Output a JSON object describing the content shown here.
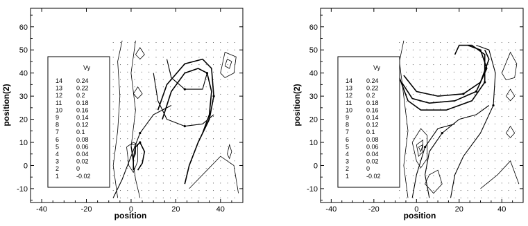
{
  "chart_data": [
    {
      "type": "contour",
      "xlabel": "position",
      "ylabel": "position(2)",
      "xlim": [
        -45,
        50
      ],
      "ylim": [
        -16,
        68
      ],
      "x_ticks": [
        -40,
        -20,
        0,
        20,
        40
      ],
      "y_ticks": [
        -10,
        0,
        10,
        20,
        30,
        40,
        50,
        60
      ],
      "legend": {
        "title": "Vy",
        "placement": "left",
        "entries": [
          {
            "level": "14",
            "value": "0.24"
          },
          {
            "level": "13",
            "value": "0.22"
          },
          {
            "level": "12",
            "value": "0.2"
          },
          {
            "level": "11",
            "value": "0.18"
          },
          {
            "level": "10",
            "value": "0.16"
          },
          {
            "level": "9",
            "value": "0.14"
          },
          {
            "level": "8",
            "value": "0.12"
          },
          {
            "level": "7",
            "value": "0.1"
          },
          {
            "level": "6",
            "value": "0.08"
          },
          {
            "level": "5",
            "value": "0.06"
          },
          {
            "level": "4",
            "value": "0.04"
          },
          {
            "level": "3",
            "value": "0.02"
          },
          {
            "level": "2",
            "value": "0"
          },
          {
            "level": "1",
            "value": "-0.02"
          }
        ]
      },
      "streamlines": [
        [
          [
            1,
            -2
          ],
          [
            1,
            3
          ],
          [
            2,
            8
          ],
          [
            4,
            10
          ],
          [
            6,
            6
          ],
          [
            5,
            1
          ],
          [
            3,
            -2
          ]
        ],
        [
          [
            14,
            20
          ],
          [
            18,
            32
          ],
          [
            24,
            40
          ],
          [
            30,
            42
          ],
          [
            34,
            40
          ],
          [
            36,
            32
          ],
          [
            35,
            22
          ],
          [
            32,
            14
          ]
        ],
        [
          [
            12,
            24
          ],
          [
            16,
            35
          ],
          [
            24,
            44
          ],
          [
            32,
            46
          ],
          [
            36,
            42
          ],
          [
            37,
            30
          ],
          [
            35,
            20
          ],
          [
            30,
            10
          ],
          [
            26,
            0
          ],
          [
            24,
            -8
          ]
        ],
        [
          [
            10,
            40
          ],
          [
            12,
            28
          ],
          [
            16,
            20
          ],
          [
            24,
            17
          ],
          [
            32,
            18
          ],
          [
            37,
            22
          ]
        ],
        [
          [
            16,
            46
          ],
          [
            18,
            38
          ],
          [
            24,
            33
          ],
          [
            32,
            33
          ],
          [
            34,
            40
          ]
        ],
        [
          [
            -8,
            -14
          ],
          [
            -4,
            -6
          ],
          [
            0,
            4
          ],
          [
            4,
            14
          ],
          [
            10,
            22
          ],
          [
            18,
            26
          ]
        ]
      ],
      "contours": [
        [
          [
            -4,
            54
          ],
          [
            -6,
            45
          ],
          [
            -5,
            30
          ],
          [
            -6,
            15
          ],
          [
            -8,
            0
          ],
          [
            -6,
            -14
          ]
        ],
        [
          [
            4,
            -14
          ],
          [
            2,
            -6
          ],
          [
            0,
            8
          ],
          [
            2,
            24
          ],
          [
            0,
            40
          ],
          [
            2,
            54
          ]
        ],
        [
          [
            -2,
            8
          ],
          [
            -1,
            0
          ],
          [
            1,
            -3
          ],
          [
            3,
            2
          ],
          [
            3,
            9
          ],
          [
            1,
            10
          ],
          [
            -2,
            8
          ]
        ],
        [
          [
            0,
            9
          ],
          [
            1,
            3
          ],
          [
            2,
            5
          ],
          [
            2,
            9
          ],
          [
            0,
            9
          ]
        ],
        [
          [
            1,
            31
          ],
          [
            3,
            29
          ],
          [
            5,
            31
          ],
          [
            3,
            34
          ],
          [
            1,
            31
          ]
        ],
        [
          [
            2,
            48
          ],
          [
            4,
            46
          ],
          [
            6,
            48
          ],
          [
            4,
            51
          ],
          [
            2,
            48
          ]
        ],
        [
          [
            40,
            40
          ],
          [
            42,
            38
          ],
          [
            46,
            40
          ],
          [
            47,
            47
          ],
          [
            42,
            49
          ],
          [
            40,
            40
          ]
        ],
        [
          [
            42,
            43
          ],
          [
            44,
            42
          ],
          [
            45,
            45
          ],
          [
            43,
            46
          ],
          [
            42,
            43
          ]
        ],
        [
          [
            43,
            5
          ],
          [
            44,
            3
          ],
          [
            45,
            6
          ],
          [
            44,
            9
          ],
          [
            43,
            5
          ]
        ],
        [
          [
            26,
            -10
          ],
          [
            34,
            -2
          ],
          [
            40,
            4
          ],
          [
            46,
            0
          ],
          [
            48,
            -12
          ]
        ]
      ]
    },
    {
      "type": "contour",
      "xlabel": "position",
      "ylabel": "position(2)",
      "xlim": [
        -45,
        50
      ],
      "ylim": [
        -16,
        68
      ],
      "x_ticks": [
        -40,
        -20,
        0,
        20,
        40
      ],
      "y_ticks": [
        -10,
        0,
        10,
        20,
        30,
        40,
        50,
        60
      ],
      "legend": {
        "title": "Vy",
        "placement": "left",
        "entries": [
          {
            "level": "14",
            "value": "0.24"
          },
          {
            "level": "13",
            "value": "0.22"
          },
          {
            "level": "12",
            "value": "0.2"
          },
          {
            "level": "11",
            "value": "0.18"
          },
          {
            "level": "10",
            "value": "0.16"
          },
          {
            "level": "9",
            "value": "0.14"
          },
          {
            "level": "8",
            "value": "0.12"
          },
          {
            "level": "7",
            "value": "0.1"
          },
          {
            "level": "6",
            "value": "0.08"
          },
          {
            "level": "5",
            "value": "0.06"
          },
          {
            "level": "4",
            "value": "0.04"
          },
          {
            "level": "3",
            "value": "0.02"
          },
          {
            "level": "2",
            "value": "0"
          },
          {
            "level": "1",
            "value": "-0.02"
          }
        ]
      },
      "streamlines": [
        [
          [
            -8,
            38
          ],
          [
            -4,
            28
          ],
          [
            2,
            24
          ],
          [
            14,
            24
          ],
          [
            26,
            28
          ],
          [
            32,
            36
          ],
          [
            32,
            48
          ],
          [
            26,
            52
          ],
          [
            20,
            52
          ],
          [
            18,
            48
          ]
        ],
        [
          [
            -7,
            36
          ],
          [
            -2,
            29
          ],
          [
            6,
            27
          ],
          [
            18,
            28
          ],
          [
            28,
            32
          ],
          [
            33,
            42
          ],
          [
            30,
            50
          ],
          [
            24,
            52
          ]
        ],
        [
          [
            -6,
            39
          ],
          [
            0,
            32
          ],
          [
            10,
            30
          ],
          [
            22,
            31
          ],
          [
            30,
            36
          ],
          [
            34,
            46
          ],
          [
            32,
            50
          ]
        ],
        [
          [
            16,
            -14
          ],
          [
            18,
            -4
          ],
          [
            22,
            4
          ],
          [
            30,
            14
          ],
          [
            36,
            26
          ],
          [
            37,
            40
          ],
          [
            34,
            50
          ],
          [
            28,
            52
          ]
        ],
        [
          [
            6,
            -14
          ],
          [
            4,
            -4
          ],
          [
            6,
            6
          ],
          [
            12,
            14
          ],
          [
            20,
            20
          ],
          [
            28,
            22
          ],
          [
            34,
            26
          ]
        ],
        [
          [
            -2,
            -14
          ],
          [
            0,
            -4
          ],
          [
            4,
            8
          ],
          [
            10,
            16
          ],
          [
            18,
            18
          ]
        ]
      ],
      "contours": [
        [
          [
            -6,
            54
          ],
          [
            -8,
            45
          ],
          [
            -6,
            30
          ],
          [
            -4,
            15
          ],
          [
            -6,
            0
          ],
          [
            -4,
            -14
          ]
        ],
        [
          [
            -2,
            10
          ],
          [
            0,
            2
          ],
          [
            2,
            -1
          ],
          [
            5,
            3
          ],
          [
            5,
            13
          ],
          [
            2,
            16
          ],
          [
            -2,
            10
          ]
        ],
        [
          [
            0,
            9
          ],
          [
            1,
            4
          ],
          [
            3,
            6
          ],
          [
            3,
            11
          ],
          [
            0,
            9
          ]
        ],
        [
          [
            1,
            8
          ],
          [
            2,
            6
          ],
          [
            3,
            9
          ],
          [
            1,
            8
          ]
        ],
        [
          [
            40,
            40
          ],
          [
            42,
            37
          ],
          [
            46,
            38
          ],
          [
            47,
            44
          ],
          [
            44,
            49
          ],
          [
            40,
            40
          ]
        ],
        [
          [
            42,
            30
          ],
          [
            44,
            28
          ],
          [
            46,
            30
          ],
          [
            44,
            33
          ],
          [
            42,
            30
          ]
        ],
        [
          [
            42,
            14
          ],
          [
            44,
            12
          ],
          [
            46,
            14
          ],
          [
            44,
            17
          ],
          [
            42,
            14
          ]
        ],
        [
          [
            6,
            -4
          ],
          [
            10,
            -2
          ],
          [
            12,
            -8
          ],
          [
            8,
            -12
          ],
          [
            4,
            -8
          ],
          [
            6,
            -4
          ]
        ],
        [
          [
            30,
            -10
          ],
          [
            38,
            -4
          ],
          [
            44,
            2
          ],
          [
            48,
            -8
          ]
        ]
      ]
    }
  ]
}
